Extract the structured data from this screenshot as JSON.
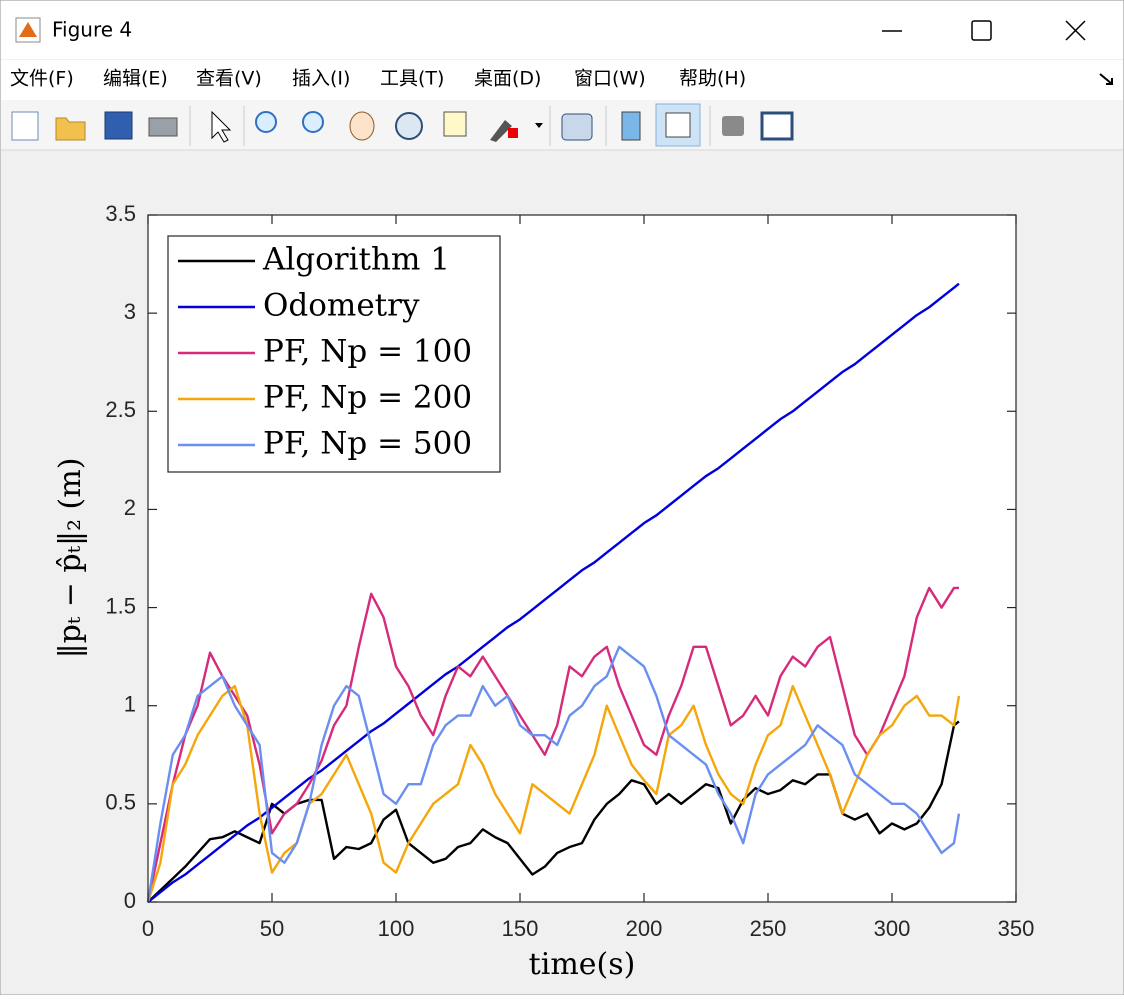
{
  "window": {
    "title": "Figure 4",
    "menu": [
      "文件(F)",
      "编辑(E)",
      "查看(V)",
      "插入(I)",
      "工具(T)",
      "桌面(D)",
      "窗口(W)",
      "帮助(H)"
    ]
  },
  "chart_data": {
    "type": "line",
    "xlabel": "time(s)",
    "ylabel": "‖pₜ − p̂ₜ‖₂ (m)",
    "xlim": [
      0,
      350
    ],
    "xticks": [
      0,
      50,
      100,
      150,
      200,
      250,
      300,
      350
    ],
    "ylim": [
      0,
      3.5
    ],
    "yticks": [
      0,
      0.5,
      1,
      1.5,
      2,
      2.5,
      3,
      3.5
    ],
    "legend": "upper left",
    "x": [
      0,
      5,
      10,
      15,
      20,
      25,
      30,
      35,
      40,
      45,
      50,
      55,
      60,
      65,
      70,
      75,
      80,
      85,
      90,
      95,
      100,
      105,
      110,
      115,
      120,
      125,
      130,
      135,
      140,
      145,
      150,
      155,
      160,
      165,
      170,
      175,
      180,
      185,
      190,
      195,
      200,
      205,
      210,
      215,
      220,
      225,
      230,
      235,
      240,
      245,
      250,
      255,
      260,
      265,
      270,
      275,
      280,
      285,
      290,
      295,
      300,
      305,
      310,
      315,
      320,
      325,
      327
    ],
    "series": [
      {
        "name": "Algorithm 1",
        "color": "#000000",
        "values": [
          0,
          0.06,
          0.12,
          0.18,
          0.25,
          0.32,
          0.33,
          0.36,
          0.33,
          0.3,
          0.5,
          0.45,
          0.5,
          0.52,
          0.52,
          0.22,
          0.28,
          0.27,
          0.3,
          0.42,
          0.47,
          0.3,
          0.25,
          0.2,
          0.22,
          0.28,
          0.3,
          0.37,
          0.33,
          0.3,
          0.22,
          0.14,
          0.18,
          0.25,
          0.28,
          0.3,
          0.42,
          0.5,
          0.55,
          0.62,
          0.6,
          0.5,
          0.55,
          0.5,
          0.55,
          0.6,
          0.58,
          0.4,
          0.52,
          0.58,
          0.55,
          0.57,
          0.62,
          0.6,
          0.65,
          0.65,
          0.45,
          0.42,
          0.45,
          0.35,
          0.4,
          0.37,
          0.4,
          0.48,
          0.6,
          0.9,
          0.92
        ]
      },
      {
        "name": "Odometry",
        "color": "#0000dd",
        "values": [
          0,
          0.05,
          0.1,
          0.14,
          0.19,
          0.24,
          0.29,
          0.34,
          0.39,
          0.43,
          0.48,
          0.53,
          0.58,
          0.63,
          0.67,
          0.72,
          0.77,
          0.82,
          0.87,
          0.91,
          0.96,
          1.01,
          1.06,
          1.11,
          1.16,
          1.2,
          1.25,
          1.3,
          1.35,
          1.4,
          1.44,
          1.49,
          1.54,
          1.59,
          1.64,
          1.69,
          1.73,
          1.78,
          1.83,
          1.88,
          1.93,
          1.97,
          2.02,
          2.07,
          2.12,
          2.17,
          2.21,
          2.26,
          2.31,
          2.36,
          2.41,
          2.46,
          2.5,
          2.55,
          2.6,
          2.65,
          2.7,
          2.74,
          2.79,
          2.84,
          2.89,
          2.94,
          2.99,
          3.03,
          3.08,
          3.13,
          3.15
        ]
      },
      {
        "name": "PF, Np = 100",
        "color": "#d62a7a",
        "values": [
          0,
          0.3,
          0.6,
          0.85,
          1.0,
          1.27,
          1.15,
          1.05,
          0.95,
          0.7,
          0.35,
          0.45,
          0.5,
          0.6,
          0.72,
          0.9,
          1.0,
          1.3,
          1.57,
          1.45,
          1.2,
          1.1,
          0.95,
          0.85,
          1.05,
          1.2,
          1.15,
          1.25,
          1.15,
          1.05,
          0.95,
          0.85,
          0.75,
          0.9,
          1.2,
          1.15,
          1.25,
          1.3,
          1.1,
          0.95,
          0.8,
          0.75,
          0.95,
          1.1,
          1.3,
          1.3,
          1.1,
          0.9,
          0.95,
          1.05,
          0.95,
          1.15,
          1.25,
          1.2,
          1.3,
          1.35,
          1.1,
          0.85,
          0.75,
          0.85,
          1.0,
          1.15,
          1.45,
          1.6,
          1.5,
          1.6,
          1.6
        ]
      },
      {
        "name": "PF, Np = 200",
        "color": "#f5a60a",
        "values": [
          0,
          0.2,
          0.6,
          0.7,
          0.85,
          0.95,
          1.05,
          1.1,
          0.9,
          0.45,
          0.15,
          0.25,
          0.3,
          0.5,
          0.55,
          0.65,
          0.75,
          0.6,
          0.45,
          0.2,
          0.15,
          0.3,
          0.4,
          0.5,
          0.55,
          0.6,
          0.8,
          0.7,
          0.55,
          0.45,
          0.35,
          0.6,
          0.55,
          0.5,
          0.45,
          0.6,
          0.75,
          1.0,
          0.85,
          0.7,
          0.62,
          0.55,
          0.85,
          0.9,
          1.0,
          0.8,
          0.65,
          0.55,
          0.5,
          0.7,
          0.85,
          0.9,
          1.1,
          0.95,
          0.8,
          0.65,
          0.45,
          0.6,
          0.75,
          0.85,
          0.9,
          1.0,
          1.05,
          0.95,
          0.95,
          0.9,
          1.05
        ]
      },
      {
        "name": "PF, Np = 500",
        "color": "#6b8ff0",
        "values": [
          0,
          0.4,
          0.75,
          0.85,
          1.05,
          1.1,
          1.15,
          1.0,
          0.9,
          0.8,
          0.25,
          0.2,
          0.3,
          0.5,
          0.8,
          1.0,
          1.1,
          1.05,
          0.8,
          0.55,
          0.5,
          0.6,
          0.6,
          0.8,
          0.9,
          0.95,
          0.95,
          1.1,
          1.0,
          1.05,
          0.9,
          0.85,
          0.85,
          0.8,
          0.95,
          1.0,
          1.1,
          1.15,
          1.3,
          1.25,
          1.2,
          1.05,
          0.85,
          0.8,
          0.75,
          0.7,
          0.55,
          0.45,
          0.3,
          0.55,
          0.65,
          0.7,
          0.75,
          0.8,
          0.9,
          0.85,
          0.8,
          0.65,
          0.6,
          0.55,
          0.5,
          0.5,
          0.45,
          0.35,
          0.25,
          0.3,
          0.45
        ]
      }
    ]
  }
}
